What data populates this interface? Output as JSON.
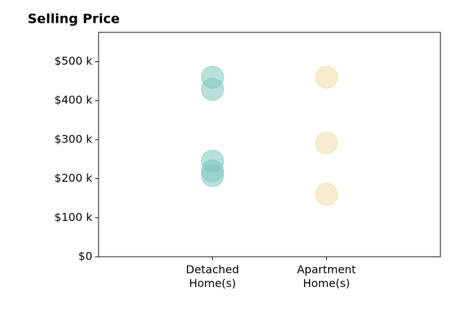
{
  "chart_data": {
    "type": "strip",
    "title": "Selling Price",
    "categories": [
      "Detached\nHome(s)",
      "Apartment\nHome(s)"
    ],
    "values": [
      [
        460000,
        429000,
        245000,
        220000,
        208000
      ],
      [
        460000,
        291000,
        160000
      ]
    ],
    "colors": [
      "#7fc9bf",
      "#f3dca8"
    ],
    "ylim": [
      0,
      575000
    ],
    "yticks": [
      {
        "value": 0,
        "label": "$0"
      },
      {
        "value": 100000,
        "label": "$100 k"
      },
      {
        "value": 200000,
        "label": "$200 k"
      },
      {
        "value": 300000,
        "label": "$300 k"
      },
      {
        "value": 400000,
        "label": "$400 k"
      },
      {
        "value": 500000,
        "label": "$500 k"
      }
    ],
    "grid": false
  }
}
